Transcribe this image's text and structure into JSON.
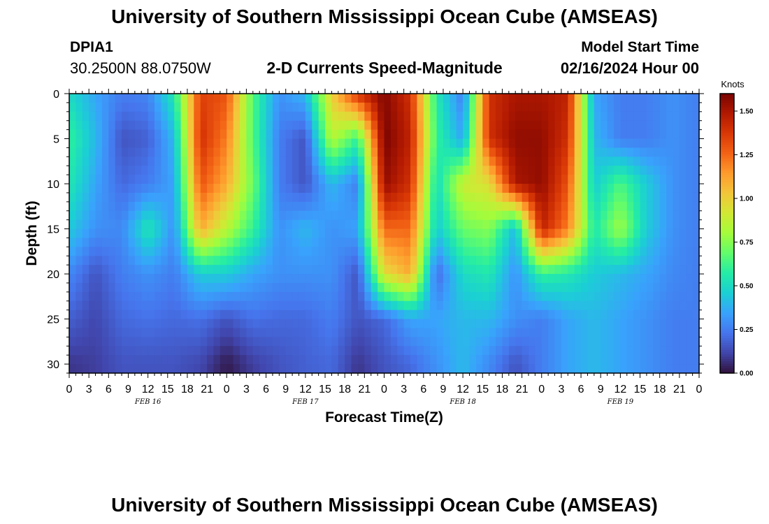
{
  "header": {
    "title": "University of Southern Mississippi Ocean Cube (AMSEAS)",
    "station_id": "DPIA1",
    "station_coords": "30.2500N  88.0750W",
    "subtitle": "2-D Currents Speed-Magnitude",
    "model_start_label": "Model Start Time",
    "model_start_value": "02/16/2024 Hour 00"
  },
  "footer": {
    "title": "University of Southern Mississippi Ocean Cube (AMSEAS)"
  },
  "chart_data": {
    "type": "heatmap",
    "xlabel": "Forecast Time(Z)",
    "ylabel": "Depth (ft)",
    "x_tick_labels": [
      "0",
      "3",
      "6",
      "9",
      "12",
      "15",
      "18",
      "21",
      "0",
      "3",
      "6",
      "9",
      "12",
      "15",
      "18",
      "21",
      "0",
      "3",
      "6",
      "9",
      "12",
      "15",
      "18",
      "21",
      "0",
      "3",
      "6",
      "9",
      "12",
      "15",
      "18",
      "21",
      "0"
    ],
    "day_labels": [
      {
        "label": "FEB 16",
        "hour": 12
      },
      {
        "label": "FEB 17",
        "hour": 36
      },
      {
        "label": "FEB 18",
        "hour": 60
      },
      {
        "label": "FEB 19",
        "hour": 84
      }
    ],
    "x_range_hours": [
      0,
      96
    ],
    "y_range_ft": [
      0,
      31
    ],
    "y_ticks": [
      0,
      5,
      10,
      15,
      20,
      25,
      30
    ],
    "colorbar": {
      "unit": "Knots",
      "range": [
        0.0,
        1.6
      ],
      "tick_labels": [
        "1.50",
        "1.25",
        "1.00",
        "0.75",
        "0.50",
        "0.25",
        "0.00"
      ],
      "tick_values": [
        1.5,
        1.25,
        1.0,
        0.75,
        0.5,
        0.25,
        0.0
      ],
      "colormap": [
        "#30123b",
        "#4145ab",
        "#4675ed",
        "#39a2fc",
        "#1bcfd4",
        "#24eca6",
        "#61fc6c",
        "#a4fc3b",
        "#d1e834",
        "#f3c63a",
        "#fe9b2d",
        "#f36315",
        "#d93806",
        "#b11901",
        "#7a0402"
      ]
    },
    "hours": [
      0,
      4,
      8,
      12,
      16,
      20,
      24,
      28,
      32,
      36,
      40,
      44,
      48,
      52,
      56,
      60,
      64,
      68,
      72,
      76,
      80,
      84,
      88,
      92,
      96
    ],
    "depths": [
      0,
      5,
      10,
      15,
      20,
      25,
      30
    ],
    "values": [
      [
        0.5,
        0.35,
        0.25,
        0.27,
        0.55,
        1.35,
        1.3,
        0.65,
        0.3,
        0.4,
        1.0,
        1.4,
        1.58,
        1.4,
        0.55,
        0.25,
        1.4,
        1.5,
        1.5,
        1.45,
        0.35,
        0.25,
        0.25,
        0.3,
        0.25
      ],
      [
        0.6,
        0.4,
        0.15,
        0.18,
        0.4,
        1.4,
        1.2,
        0.65,
        0.25,
        0.15,
        0.85,
        0.6,
        1.6,
        1.45,
        0.6,
        0.35,
        1.4,
        1.55,
        1.55,
        1.4,
        0.4,
        0.25,
        0.25,
        0.3,
        0.25
      ],
      [
        0.55,
        0.35,
        0.2,
        0.25,
        0.35,
        1.3,
        1.1,
        0.7,
        0.25,
        0.15,
        0.4,
        0.25,
        1.55,
        1.4,
        0.5,
        0.9,
        0.95,
        1.5,
        1.55,
        1.3,
        0.45,
        0.65,
        0.45,
        0.3,
        0.25
      ],
      [
        0.45,
        0.3,
        0.28,
        0.55,
        0.3,
        1.1,
        0.85,
        0.6,
        0.3,
        0.4,
        0.3,
        0.35,
        1.25,
        1.25,
        0.45,
        0.7,
        0.75,
        0.4,
        1.45,
        1.2,
        0.55,
        0.8,
        0.45,
        0.3,
        0.25
      ],
      [
        0.28,
        0.15,
        0.25,
        0.3,
        0.25,
        0.45,
        0.45,
        0.35,
        0.3,
        0.3,
        0.3,
        0.15,
        0.95,
        1.1,
        0.2,
        0.5,
        0.55,
        0.3,
        0.6,
        0.55,
        0.45,
        0.4,
        0.35,
        0.28,
        0.25
      ],
      [
        0.18,
        0.12,
        0.2,
        0.22,
        0.2,
        0.22,
        0.15,
        0.22,
        0.2,
        0.2,
        0.25,
        0.15,
        0.2,
        0.35,
        0.35,
        0.4,
        0.4,
        0.3,
        0.25,
        0.35,
        0.4,
        0.35,
        0.3,
        0.25,
        0.25
      ],
      [
        0.08,
        0.1,
        0.15,
        0.15,
        0.15,
        0.12,
        0.02,
        0.1,
        0.15,
        0.18,
        0.2,
        0.08,
        0.15,
        0.2,
        0.3,
        0.4,
        0.28,
        0.15,
        0.25,
        0.35,
        0.4,
        0.35,
        0.3,
        0.25,
        0.25
      ]
    ]
  }
}
